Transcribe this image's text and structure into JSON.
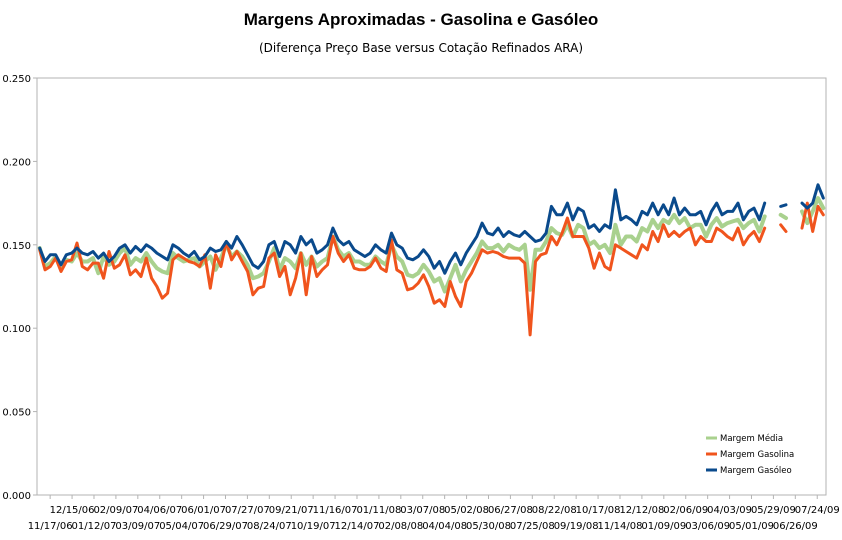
{
  "chart_data": {
    "type": "line",
    "title": "Margens Aproximadas - Gasolina e Gasóleo",
    "subtitle": "(Diferença Preço Base versus Cotação Refinados ARA)",
    "xlabel": "",
    "ylabel": "",
    "ylim": [
      0.0,
      0.25
    ],
    "yticks": [
      "0.000",
      "0.050",
      "0.100",
      "0.150",
      "0.200",
      "0.250"
    ],
    "grid": false,
    "legend_position": "bottom-right",
    "x_labels_row1": [
      "12/15/06",
      "02/09/07",
      "04/06/07",
      "06/01/07",
      "07/27/07",
      "09/21/07",
      "11/16/07",
      "01/11/08",
      "03/07/08",
      "05/02/08",
      "06/27/08",
      "08/22/08",
      "10/17/08",
      "12/12/08",
      "02/06/09",
      "04/03/09",
      "05/29/09",
      "07/24/09"
    ],
    "x_labels_row2": [
      "11/17/06",
      "01/12/07",
      "03/09/07",
      "05/04/07",
      "06/29/07",
      "08/24/07",
      "10/19/07",
      "12/14/07",
      "02/08/08",
      "04/04/08",
      "05/30/08",
      "07/25/08",
      "09/19/08",
      "11/14/08",
      "01/09/09",
      "03/06/09",
      "05/01/09",
      "06/26/09"
    ],
    "series": [
      {
        "name": "Margem Média",
        "color": "#a9d18e",
        "values": [
          0.148,
          0.137,
          0.139,
          0.143,
          0.137,
          0.141,
          0.14,
          0.145,
          0.14,
          0.14,
          0.142,
          0.133,
          0.143,
          0.138,
          0.14,
          0.145,
          0.148,
          0.138,
          0.142,
          0.14,
          0.145,
          0.14,
          0.136,
          0.134,
          0.133,
          0.145,
          0.142,
          0.14,
          0.141,
          0.142,
          0.137,
          0.14,
          0.143,
          0.135,
          0.142,
          0.15,
          0.143,
          0.146,
          0.143,
          0.138,
          0.13,
          0.131,
          0.133,
          0.14,
          0.148,
          0.135,
          0.142,
          0.14,
          0.136,
          0.145,
          0.138,
          0.143,
          0.137,
          0.14,
          0.142,
          0.155,
          0.147,
          0.143,
          0.145,
          0.14,
          0.14,
          0.138,
          0.138,
          0.143,
          0.14,
          0.138,
          0.15,
          0.143,
          0.14,
          0.132,
          0.131,
          0.133,
          0.138,
          0.134,
          0.128,
          0.13,
          0.122,
          0.13,
          0.138,
          0.128,
          0.135,
          0.14,
          0.145,
          0.152,
          0.148,
          0.148,
          0.15,
          0.146,
          0.15,
          0.148,
          0.147,
          0.15,
          0.123,
          0.147,
          0.147,
          0.152,
          0.16,
          0.157,
          0.156,
          0.162,
          0.155,
          0.162,
          0.16,
          0.15,
          0.152,
          0.148,
          0.15,
          0.145,
          0.162,
          0.15,
          0.155,
          0.155,
          0.152,
          0.16,
          0.158,
          0.165,
          0.16,
          0.165,
          0.163,
          0.168,
          0.163,
          0.166,
          0.16,
          0.162,
          0.162,
          0.155,
          0.162,
          0.166,
          0.161,
          0.163,
          0.164,
          0.165,
          0.16,
          0.163,
          0.165,
          0.158,
          0.167,
          null,
          null,
          0.168,
          0.166,
          null,
          null,
          0.17,
          0.163,
          0.17,
          0.178,
          0.172
        ]
      },
      {
        "name": "Margem Gasolina",
        "color": "#f0541d",
        "values": [
          0.147,
          0.135,
          0.137,
          0.142,
          0.134,
          0.14,
          0.141,
          0.151,
          0.137,
          0.135,
          0.139,
          0.139,
          0.13,
          0.146,
          0.136,
          0.138,
          0.144,
          0.132,
          0.135,
          0.131,
          0.142,
          0.13,
          0.125,
          0.118,
          0.121,
          0.141,
          0.144,
          0.142,
          0.14,
          0.139,
          0.137,
          0.144,
          0.124,
          0.144,
          0.137,
          0.152,
          0.141,
          0.146,
          0.14,
          0.134,
          0.12,
          0.124,
          0.125,
          0.142,
          0.145,
          0.131,
          0.137,
          0.12,
          0.13,
          0.145,
          0.12,
          0.143,
          0.131,
          0.135,
          0.138,
          0.155,
          0.145,
          0.14,
          0.144,
          0.136,
          0.135,
          0.135,
          0.137,
          0.142,
          0.136,
          0.134,
          0.153,
          0.135,
          0.133,
          0.123,
          0.124,
          0.127,
          0.132,
          0.125,
          0.115,
          0.117,
          0.113,
          0.128,
          0.119,
          0.113,
          0.128,
          0.133,
          0.14,
          0.147,
          0.145,
          0.146,
          0.145,
          0.143,
          0.142,
          0.142,
          0.142,
          0.139,
          0.096,
          0.14,
          0.144,
          0.145,
          0.155,
          0.15,
          0.157,
          0.166,
          0.155,
          0.155,
          0.155,
          0.148,
          0.136,
          0.145,
          0.137,
          0.135,
          0.15,
          0.148,
          0.146,
          0.144,
          0.142,
          0.15,
          0.147,
          0.158,
          0.152,
          0.162,
          0.155,
          0.158,
          0.155,
          0.158,
          0.16,
          0.15,
          0.155,
          0.152,
          0.152,
          0.16,
          0.158,
          0.155,
          0.153,
          0.16,
          0.15,
          0.155,
          0.158,
          0.152,
          0.16,
          null,
          null,
          0.162,
          0.158,
          null,
          null,
          0.16,
          0.175,
          0.158,
          0.173,
          0.168
        ]
      },
      {
        "name": "Margem Gasóleo",
        "color": "#0a4a8c",
        "values": [
          0.148,
          0.14,
          0.144,
          0.144,
          0.138,
          0.144,
          0.145,
          0.148,
          0.145,
          0.144,
          0.146,
          0.142,
          0.145,
          0.14,
          0.143,
          0.148,
          0.15,
          0.145,
          0.149,
          0.146,
          0.15,
          0.148,
          0.145,
          0.143,
          0.141,
          0.15,
          0.148,
          0.145,
          0.143,
          0.146,
          0.141,
          0.143,
          0.148,
          0.146,
          0.147,
          0.152,
          0.148,
          0.155,
          0.15,
          0.144,
          0.138,
          0.136,
          0.14,
          0.15,
          0.152,
          0.143,
          0.152,
          0.15,
          0.145,
          0.155,
          0.15,
          0.153,
          0.145,
          0.147,
          0.15,
          0.16,
          0.153,
          0.15,
          0.152,
          0.147,
          0.145,
          0.143,
          0.145,
          0.15,
          0.147,
          0.145,
          0.157,
          0.15,
          0.148,
          0.142,
          0.141,
          0.143,
          0.147,
          0.143,
          0.136,
          0.14,
          0.133,
          0.14,
          0.145,
          0.138,
          0.145,
          0.15,
          0.155,
          0.163,
          0.157,
          0.156,
          0.16,
          0.155,
          0.158,
          0.156,
          0.155,
          0.158,
          0.155,
          0.152,
          0.153,
          0.157,
          0.173,
          0.168,
          0.168,
          0.175,
          0.165,
          0.172,
          0.17,
          0.16,
          0.162,
          0.158,
          0.162,
          0.16,
          0.183,
          0.165,
          0.167,
          0.165,
          0.162,
          0.17,
          0.168,
          0.175,
          0.168,
          0.174,
          0.168,
          0.178,
          0.168,
          0.172,
          0.168,
          0.168,
          0.17,
          0.162,
          0.17,
          0.175,
          0.168,
          0.17,
          0.17,
          0.175,
          0.165,
          0.17,
          0.172,
          0.165,
          0.175,
          null,
          null,
          0.173,
          0.174,
          null,
          null,
          0.175,
          0.172,
          0.175,
          0.186,
          0.178
        ]
      }
    ]
  }
}
